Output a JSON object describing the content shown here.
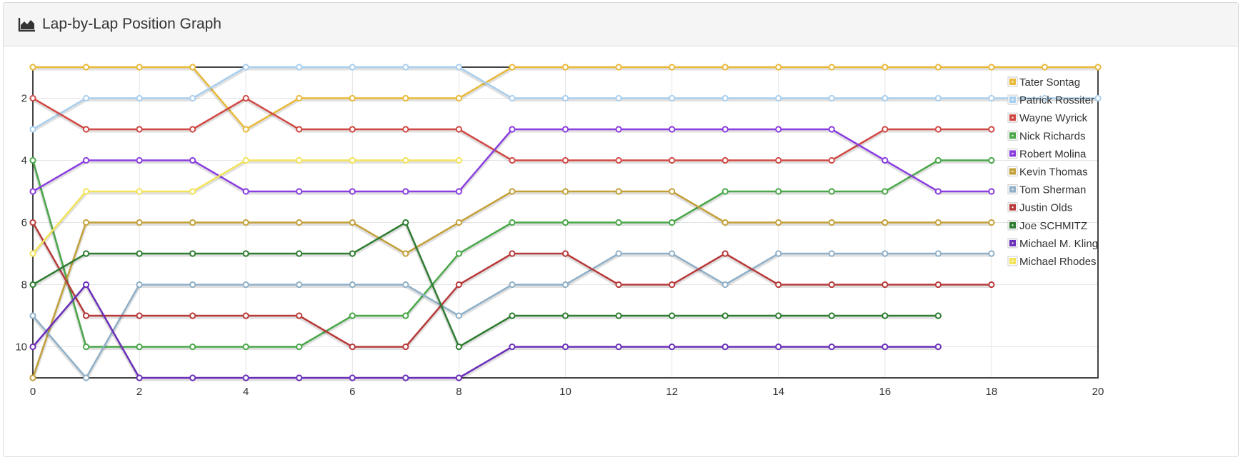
{
  "panel": {
    "title": "Lap-by-Lap Position Graph",
    "icon": "area-chart-icon"
  },
  "chart_data": {
    "type": "line",
    "title": "",
    "xlabel": "",
    "ylabel": "",
    "xlim": [
      0,
      20
    ],
    "ylim": [
      11,
      1
    ],
    "y_reversed": true,
    "x_ticks": [
      0,
      2,
      4,
      6,
      8,
      10,
      12,
      14,
      16,
      18,
      20
    ],
    "y_ticks": [
      2,
      4,
      6,
      8,
      10
    ],
    "grid": true,
    "legend_position": "top-right",
    "series": [
      {
        "name": "Tater Sontag",
        "color": "#e8b93a",
        "values": [
          1,
          1,
          1,
          1,
          3,
          2,
          2,
          2,
          2,
          1,
          1,
          1,
          1,
          1,
          1,
          1,
          1,
          1,
          1,
          1,
          1
        ]
      },
      {
        "name": "Patrick Rossiter",
        "color": "#a9cfee",
        "values": [
          3,
          2,
          2,
          2,
          1,
          1,
          1,
          1,
          1,
          2,
          2,
          2,
          2,
          2,
          2,
          2,
          2,
          2,
          2,
          2,
          2
        ]
      },
      {
        "name": "Wayne Wyrick",
        "color": "#d04a45",
        "values": [
          2,
          3,
          3,
          3,
          2,
          3,
          3,
          3,
          3,
          4,
          4,
          4,
          4,
          4,
          4,
          4,
          3,
          3,
          3
        ]
      },
      {
        "name": "Nick Richards",
        "color": "#4aa84a",
        "values": [
          4,
          10,
          10,
          10,
          10,
          10,
          9,
          9,
          7,
          6,
          6,
          6,
          6,
          5,
          5,
          5,
          5,
          4,
          4
        ]
      },
      {
        "name": "Robert Molina",
        "color": "#8b3fe0",
        "values": [
          5,
          4,
          4,
          4,
          5,
          5,
          5,
          5,
          5,
          3,
          3,
          3,
          3,
          3,
          3,
          3,
          4,
          5,
          5
        ]
      },
      {
        "name": "Kevin Thomas",
        "color": "#c3a03a",
        "values": [
          11,
          6,
          6,
          6,
          6,
          6,
          6,
          7,
          6,
          5,
          5,
          5,
          5,
          6,
          6,
          6,
          6,
          6,
          6
        ]
      },
      {
        "name": "Tom Sherman",
        "color": "#8fb0c8",
        "values": [
          9,
          11,
          8,
          8,
          8,
          8,
          8,
          8,
          9,
          8,
          8,
          7,
          7,
          8,
          7,
          7,
          7,
          7,
          7
        ]
      },
      {
        "name": "Justin Olds",
        "color": "#b83a3a",
        "values": [
          6,
          9,
          9,
          9,
          9,
          9,
          10,
          10,
          8,
          7,
          7,
          8,
          8,
          7,
          8,
          8,
          8,
          8,
          8
        ]
      },
      {
        "name": "Joe SCHMITZ",
        "color": "#2f7d32",
        "values": [
          8,
          7,
          7,
          7,
          7,
          7,
          7,
          6,
          10,
          9,
          9,
          9,
          9,
          9,
          9,
          9,
          9,
          9
        ]
      },
      {
        "name": "Michael M. Kling",
        "color": "#6a2fb8",
        "values": [
          10,
          8,
          11,
          11,
          11,
          11,
          11,
          11,
          11,
          10,
          10,
          10,
          10,
          10,
          10,
          10,
          10,
          10
        ]
      },
      {
        "name": "Michael Rhodes",
        "color": "#f3e35a",
        "values": [
          7,
          5,
          5,
          5,
          4,
          4,
          4,
          4,
          4
        ]
      }
    ]
  }
}
